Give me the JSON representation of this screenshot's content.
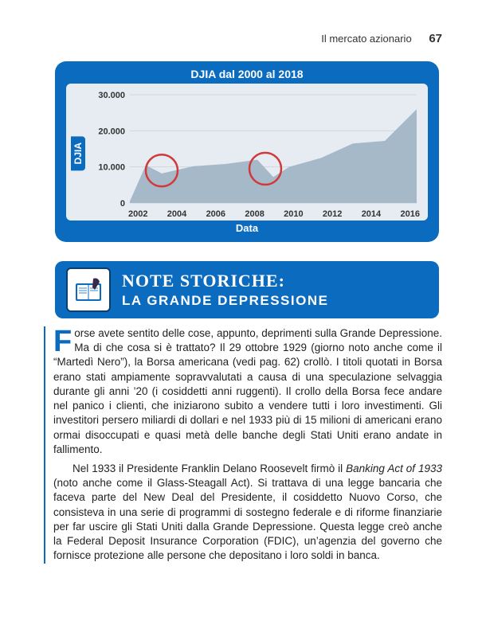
{
  "header": {
    "section": "Il mercato azionario",
    "page": "67"
  },
  "chart": {
    "type": "area",
    "title": "DJIA dal 2000 al 2018",
    "y_label": "DJIA",
    "x_label": "Data",
    "background_outer": "#0b6bbf",
    "background_inner": "#e6ecf2",
    "area_fill": "#a6b9c9",
    "grid_color": "#cfd7de",
    "circle_color": "#d13a3a",
    "y_ticks": [
      "0",
      "10.000",
      "20.000",
      "30.000"
    ],
    "ylim": [
      0,
      30000
    ],
    "x_ticks": [
      "2002",
      "2004",
      "2006",
      "2008",
      "2010",
      "2012",
      "2014",
      "2016"
    ],
    "xlim": [
      2000,
      2018
    ],
    "series": [
      {
        "x": 2000,
        "y": 500
      },
      {
        "x": 2001,
        "y": 10500
      },
      {
        "x": 2002,
        "y": 8200
      },
      {
        "x": 2004,
        "y": 10200
      },
      {
        "x": 2006,
        "y": 10800
      },
      {
        "x": 2008,
        "y": 12000
      },
      {
        "x": 2009,
        "y": 7200
      },
      {
        "x": 2010,
        "y": 10000
      },
      {
        "x": 2012,
        "y": 12500
      },
      {
        "x": 2014,
        "y": 16500
      },
      {
        "x": 2016,
        "y": 17200
      },
      {
        "x": 2018,
        "y": 26000
      }
    ],
    "highlight_circles": [
      {
        "cx_year": 2002,
        "cy_val": 9000,
        "r": 20
      },
      {
        "cx_year": 2008.5,
        "cy_val": 9500,
        "r": 20
      }
    ]
  },
  "note": {
    "title1": "NOTE STORICHE:",
    "title2": "LA GRANDE DEPRESSIONE",
    "dropcap": "F",
    "p1_after_cap": "orse avete sentito delle cose, appunto, deprimenti sulla Grande De­pressione. Ma di che cosa si è trattato? Il 29 ottobre 1929 (giorno noto anche come il “Martedì Nero”), la Borsa americana (vedi pag. 62) crollò. I titoli quotati in Borsa erano stati ampiamente sopravvalutati a causa di una speculazione selvaggia durante gli anni ’20 (i cosiddetti anni ruggenti). Il crollo della Borsa fece andare nel panico i clienti, che inizia­rono subito a vendere tutti i loro investimenti. Gli investitori persero mi­liardi di dollari e nel 1933 più di 15 milioni di americani erano ormai di­soccupati e quasi metà delle banche degli Stati Uniti erano andate in fallimento.",
    "p2_pre": "Nel 1933 il Presidente Franklin Delano Roosevelt firmò il ",
    "p2_ital": "Banking Act of 1933",
    "p2_post": " (noto anche come il Glass-Steagall Act). Si trattava di una leg­ge bancaria che faceva parte del New Deal del Presidente, il cosiddetto Nuovo Corso, che consisteva in una serie di programmi di sostegno fe­derale e di riforme finanziarie per far uscire gli Stati Uniti dalla Grande Depressione. Questa legge creò anche la Federal Deposit Insurance Cor­poration (FDIC), un’agenzia del governo che fornisce protezione alle per­sone che depositano i loro soldi in banca."
  }
}
